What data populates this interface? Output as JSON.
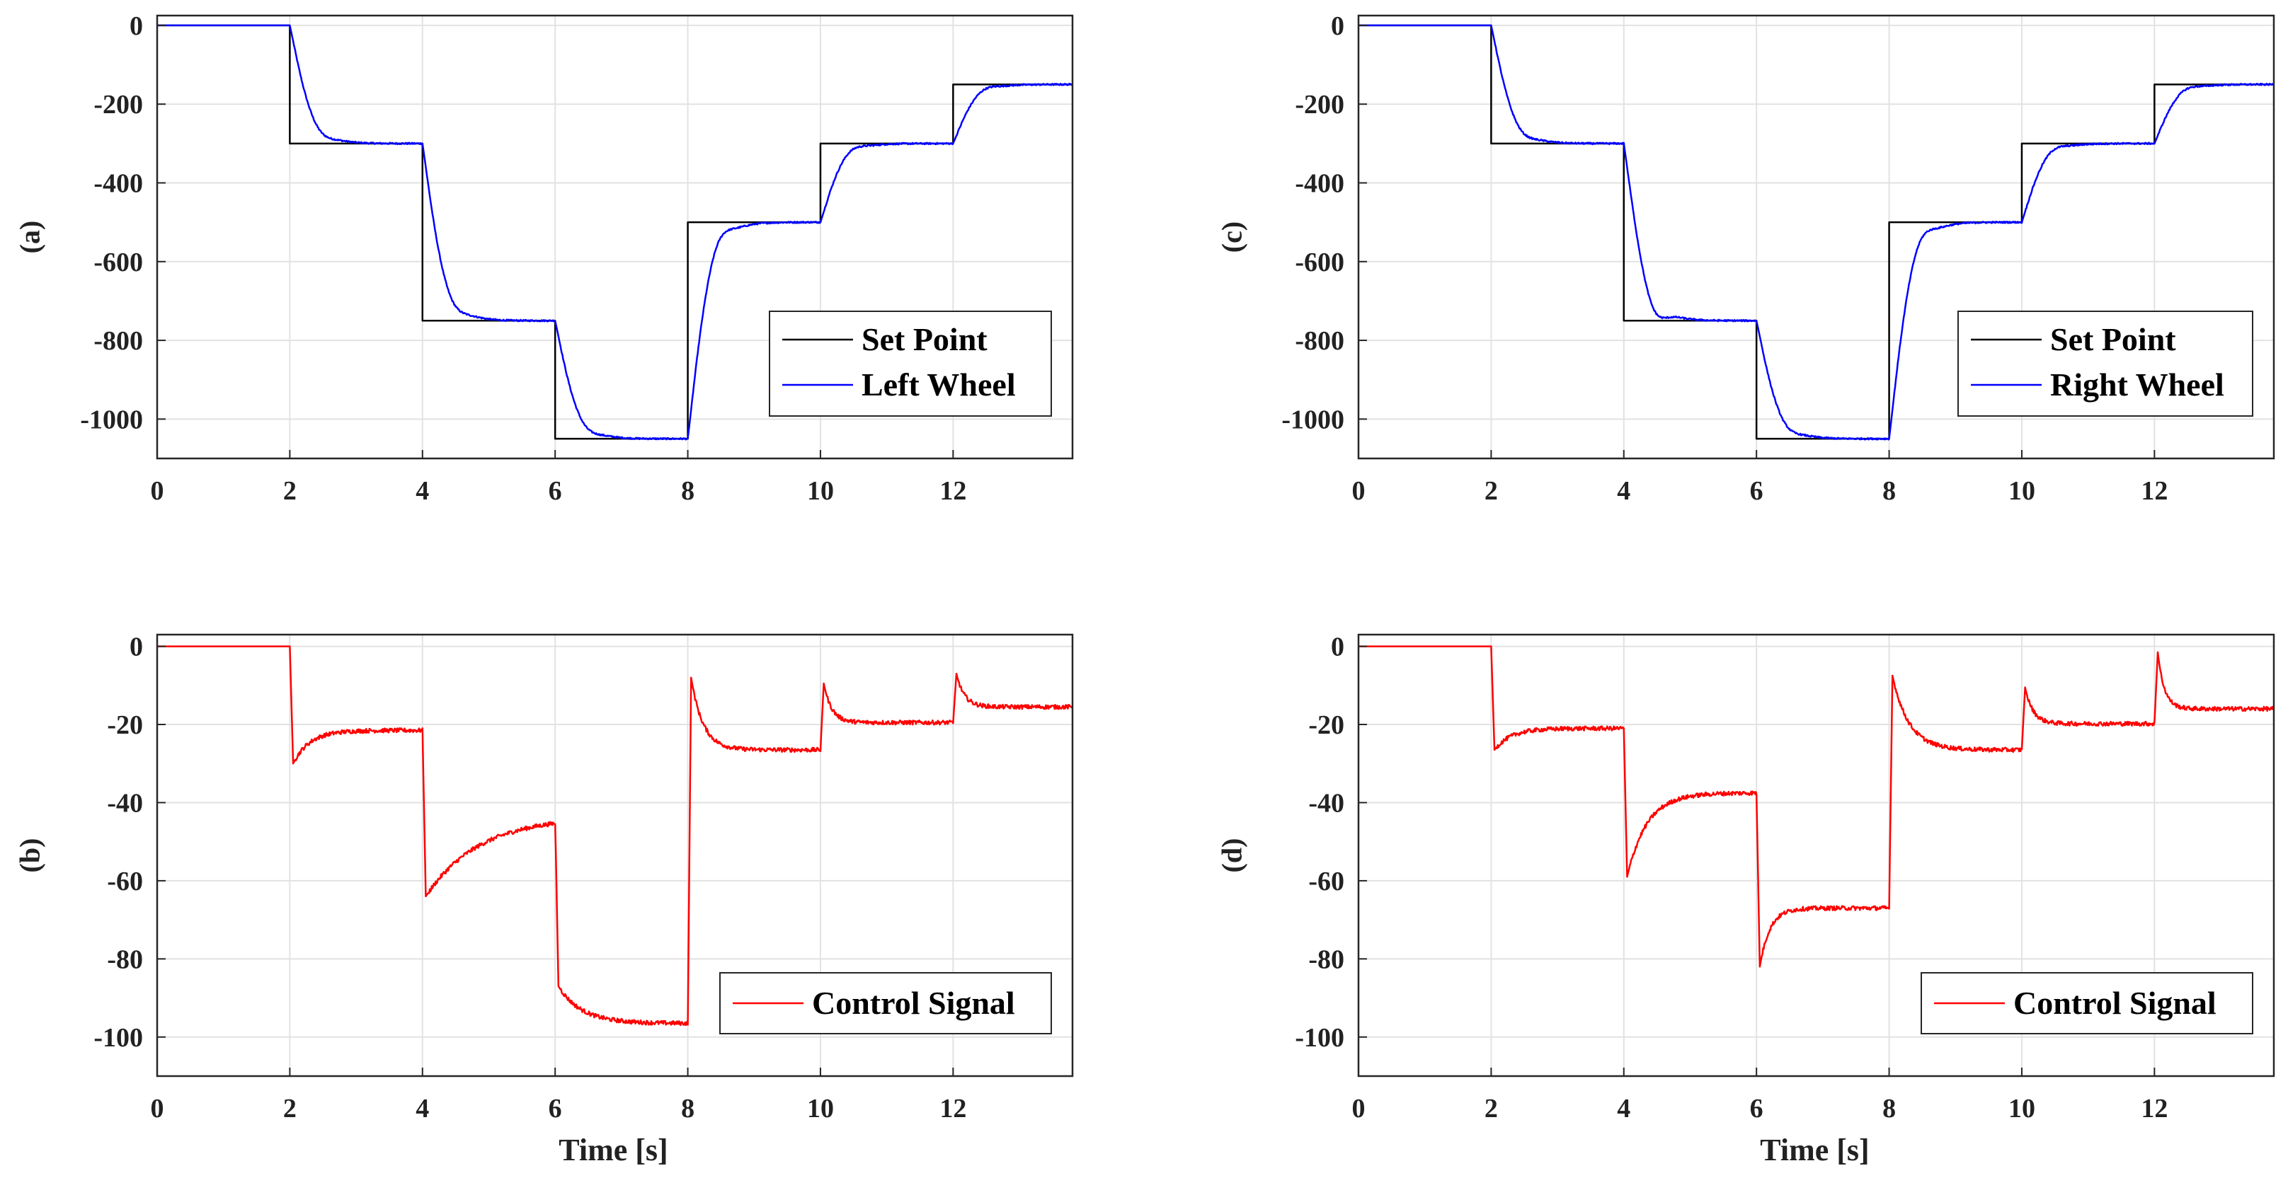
{
  "chart_data": [
    {
      "id": "a",
      "type": "line",
      "panel_label": "(a)",
      "xlabel": "",
      "xlim": [
        0,
        13.8
      ],
      "ylim": [
        -1100,
        25
      ],
      "xticks": [
        "0",
        "2",
        "4",
        "6",
        "8",
        "10",
        "12"
      ],
      "yticks": [
        "0",
        "-200",
        "-400",
        "-600",
        "-800",
        "-1000"
      ],
      "grid": true,
      "legend_position": "bottom-right",
      "setpoint_steps": [
        [
          0,
          0
        ],
        [
          2,
          -300
        ],
        [
          4,
          -750
        ],
        [
          6,
          -1050
        ],
        [
          8,
          -500
        ],
        [
          10,
          -300
        ],
        [
          12,
          -150
        ],
        [
          13.8,
          -150
        ]
      ],
      "series": [
        {
          "name": "Set Point",
          "color": "#000000",
          "kind": "setpoint"
        },
        {
          "name": "Left Wheel",
          "color": "#0000ff",
          "kind": "response"
        }
      ]
    },
    {
      "id": "b",
      "type": "line",
      "panel_label": "(b)",
      "xlabel": "Time [s]",
      "xlim": [
        0,
        13.8
      ],
      "ylim": [
        -110,
        3
      ],
      "xticks": [
        "0",
        "2",
        "4",
        "6",
        "8",
        "10",
        "12"
      ],
      "yticks": [
        "0",
        "-20",
        "-40",
        "-60",
        "-80",
        "-100"
      ],
      "grid": true,
      "legend_position": "bottom-right",
      "control_steps": [
        {
          "t": 2,
          "start": -30,
          "settle": -21.5,
          "tau": 0.25
        },
        {
          "t": 4,
          "start": -64,
          "settle": -43.5,
          "tau": 0.8
        },
        {
          "t": 6,
          "start": -87,
          "settle": -96.5,
          "tau": 0.35
        },
        {
          "t": 8,
          "start": -8,
          "settle": -26.5,
          "tau": 0.18
        },
        {
          "t": 10,
          "start": -9.5,
          "settle": -19.5,
          "tau": 0.12
        },
        {
          "t": 12,
          "start": -7,
          "settle": -15.5,
          "tau": 0.12
        }
      ],
      "series": [
        {
          "name": "Control Signal",
          "color": "#ff0000",
          "kind": "control"
        }
      ]
    },
    {
      "id": "c",
      "type": "line",
      "panel_label": "(c)",
      "xlabel": "",
      "xlim": [
        0,
        13.8
      ],
      "ylim": [
        -1100,
        25
      ],
      "xticks": [
        "0",
        "2",
        "4",
        "6",
        "8",
        "10",
        "12"
      ],
      "yticks": [
        "0",
        "-200",
        "-400",
        "-600",
        "-800",
        "-1000"
      ],
      "grid": true,
      "legend_position": "bottom-right",
      "setpoint_steps": [
        [
          0,
          0
        ],
        [
          2,
          -300
        ],
        [
          4,
          -750
        ],
        [
          6,
          -1050
        ],
        [
          8,
          -500
        ],
        [
          10,
          -300
        ],
        [
          12,
          -150
        ],
        [
          13.8,
          -150
        ]
      ],
      "series": [
        {
          "name": "Set Point",
          "color": "#000000",
          "kind": "setpoint"
        },
        {
          "name": "Right Wheel",
          "color": "#0000ff",
          "kind": "response"
        }
      ]
    },
    {
      "id": "d",
      "type": "line",
      "panel_label": "(d)",
      "xlabel": "Time [s]",
      "xlim": [
        0,
        13.8
      ],
      "ylim": [
        -110,
        3
      ],
      "xticks": [
        "0",
        "2",
        "4",
        "6",
        "8",
        "10",
        "12"
      ],
      "yticks": [
        "0",
        "-20",
        "-40",
        "-60",
        "-80",
        "-100"
      ],
      "grid": true,
      "legend_position": "bottom-right",
      "control_steps": [
        {
          "t": 2,
          "start": -26.5,
          "settle": -21,
          "tau": 0.25
        },
        {
          "t": 4,
          "start": -59,
          "settle": -37.5,
          "tau": 0.3
        },
        {
          "t": 6,
          "start": -82,
          "settle": -67,
          "tau": 0.15
        },
        {
          "t": 8,
          "start": -7.5,
          "settle": -26.5,
          "tau": 0.25
        },
        {
          "t": 10,
          "start": -10.5,
          "settle": -19.8,
          "tau": 0.12
        },
        {
          "t": 12,
          "start": -1.5,
          "settle": -16,
          "tau": 0.1
        }
      ],
      "series": [
        {
          "name": "Control Signal",
          "color": "#ff0000",
          "kind": "control"
        }
      ]
    }
  ]
}
